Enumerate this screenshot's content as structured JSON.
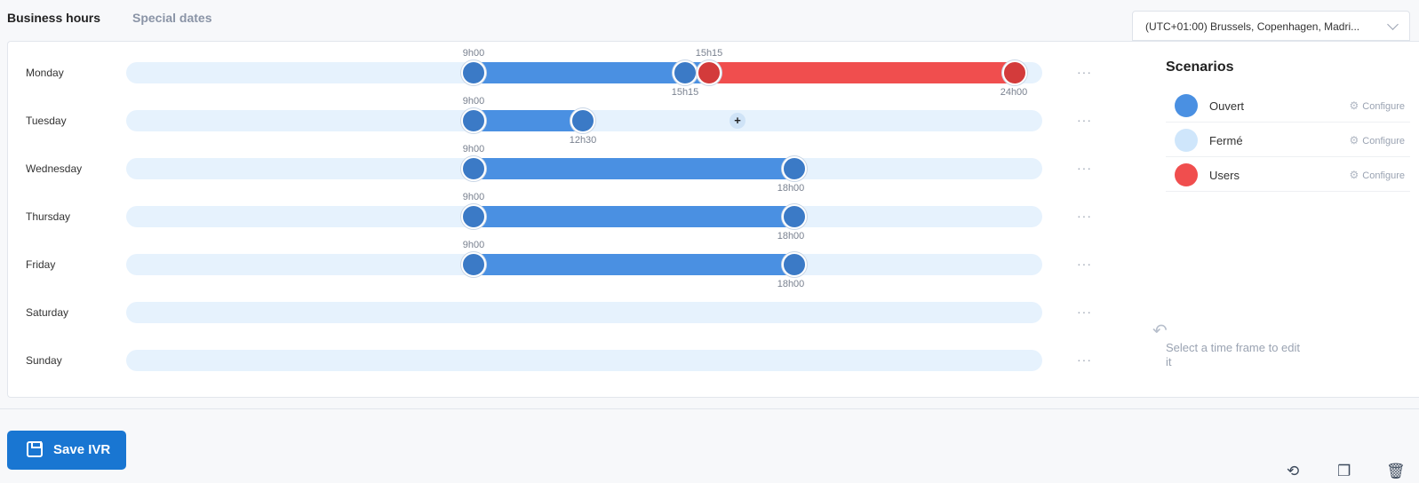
{
  "tabs": {
    "business_hours": "Business hours",
    "special_dates": "Special dates"
  },
  "timezone": {
    "value": "(UTC+01:00) Brussels, Copenhagen, Madri..."
  },
  "days": [
    {
      "label": "Monday",
      "labels": {
        "a": "9h00",
        "b": "15h15",
        "c": "15h15",
        "d": "24h00"
      }
    },
    {
      "label": "Tuesday",
      "labels": {
        "a": "9h00",
        "b": "12h30",
        "add": "+"
      }
    },
    {
      "label": "Wednesday",
      "labels": {
        "a": "9h00",
        "b": "18h00"
      }
    },
    {
      "label": "Thursday",
      "labels": {
        "a": "9h00",
        "b": "18h00"
      }
    },
    {
      "label": "Friday",
      "labels": {
        "a": "9h00",
        "b": "18h00"
      }
    },
    {
      "label": "Saturday"
    },
    {
      "label": "Sunday"
    }
  ],
  "row_menu": "···",
  "scenarios": {
    "title": "Scenarios",
    "items": [
      {
        "name": "Ouvert",
        "color": "#4a90e2",
        "configure": "Configure"
      },
      {
        "name": "Fermé",
        "color": "#cfe6fb",
        "configure": "Configure"
      },
      {
        "name": "Users",
        "color": "#f04e4e",
        "configure": "Configure"
      }
    ]
  },
  "hint": "Select a time frame to edit it",
  "save_button": "Save IVR",
  "icons": {
    "history": "history-icon",
    "copy": "copy-icon",
    "delete": "trash-icon",
    "gear": "gear-icon"
  }
}
